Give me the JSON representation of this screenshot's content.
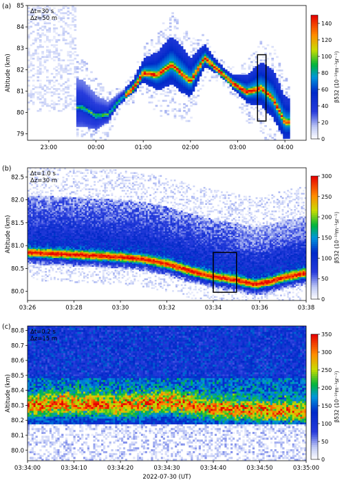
{
  "chart_data": [
    {
      "type": "heatmap",
      "panel_label": "(a)",
      "annotation": [
        "Δt=30 s",
        "Δz=50 m"
      ],
      "ylabel": "Altitude (km)",
      "ylim": [
        78.7,
        85
      ],
      "yticks": [
        79,
        80,
        81,
        82,
        83,
        84,
        85
      ],
      "xlim_hours_ut": [
        22.55,
        28.45
      ],
      "xticks": [
        {
          "t": 23,
          "label": "23:00"
        },
        {
          "t": 24,
          "label": "00:00"
        },
        {
          "t": 25,
          "label": "01:00"
        },
        {
          "t": 26,
          "label": "02:00"
        },
        {
          "t": 27,
          "label": "03:00"
        },
        {
          "t": 28,
          "label": "04:00"
        }
      ],
      "colorbar": {
        "label": "β532 (10⁻¹⁰m⁻¹sr⁻¹)",
        "min": 0,
        "max": 150,
        "ticks": [
          0,
          20,
          40,
          60,
          80,
          100,
          120,
          140
        ]
      },
      "layer_centre_km": {
        "t": [
          23.7,
          24.0,
          24.25,
          24.5,
          24.8,
          25.0,
          25.3,
          25.6,
          26.0,
          26.3,
          26.6,
          26.9,
          27.2,
          27.5,
          27.75,
          28.0
        ],
        "z": [
          80.3,
          79.9,
          79.95,
          80.6,
          81.2,
          81.9,
          81.8,
          82.3,
          81.5,
          82.6,
          82.0,
          81.4,
          81.0,
          81.2,
          80.7,
          79.6
        ]
      },
      "box": {
        "t": [
          27.42,
          27.6
        ],
        "z": [
          79.6,
          82.7
        ]
      }
    },
    {
      "type": "heatmap",
      "panel_label": "(b)",
      "annotation": [
        "Δt=1.0 s",
        "Δz=30 m"
      ],
      "ylabel": "Altitude (km)",
      "ylim": [
        79.8,
        82.7
      ],
      "yticks": [
        80.0,
        80.5,
        81.0,
        81.5,
        82.0,
        82.5
      ],
      "xlim_min_after_0300": [
        26,
        38
      ],
      "xticks": [
        {
          "m": 26,
          "label": "03:26"
        },
        {
          "m": 28,
          "label": "03:28"
        },
        {
          "m": 30,
          "label": "03:30"
        },
        {
          "m": 32,
          "label": "03:32"
        },
        {
          "m": 34,
          "label": "03:34"
        },
        {
          "m": 36,
          "label": "03:36"
        },
        {
          "m": 38,
          "label": "03:38"
        }
      ],
      "colorbar": {
        "label": "β532 (10⁻¹⁰m⁻¹sr⁻¹)",
        "min": 0,
        "max": 300,
        "ticks": [
          0,
          50,
          100,
          150,
          200,
          250,
          300
        ]
      },
      "layer_centre_km": {
        "m": [
          26,
          28,
          30,
          31,
          32,
          33,
          34,
          35,
          35.8,
          36.5,
          37,
          38
        ],
        "z": [
          80.85,
          80.8,
          80.75,
          80.7,
          80.6,
          80.45,
          80.32,
          80.25,
          80.15,
          80.22,
          80.3,
          80.4
        ]
      },
      "box": {
        "m": [
          34,
          35
        ],
        "z": [
          79.98,
          80.85
        ]
      }
    },
    {
      "type": "heatmap",
      "panel_label": "(c)",
      "annotation": [
        "Δt=0.2 s",
        "Δz=15 m"
      ],
      "ylabel": "Altitude (km)",
      "xlabel": "2022-07-30 (UT)",
      "ylim": [
        79.93,
        80.83
      ],
      "yticks": [
        80.0,
        80.1,
        80.2,
        80.3,
        80.4,
        80.5,
        80.6,
        80.7,
        80.8
      ],
      "xlim_s_after_033400": [
        0,
        60
      ],
      "xticks": [
        {
          "s": 0,
          "label": "03:34:00"
        },
        {
          "s": 10,
          "label": "03:34:10"
        },
        {
          "s": 20,
          "label": "03:34:20"
        },
        {
          "s": 30,
          "label": "03:34:30"
        },
        {
          "s": 40,
          "label": "03:34:40"
        },
        {
          "s": 50,
          "label": "03:34:50"
        },
        {
          "s": 60,
          "label": "03:35:00"
        }
      ],
      "colorbar": {
        "label": "β532 (10⁻¹⁰m⁻¹sr⁻¹)",
        "min": 0,
        "max": 350,
        "ticks": [
          0,
          50,
          100,
          150,
          200,
          250,
          300,
          350
        ]
      },
      "layer_centre_km": {
        "s": [
          0,
          10,
          20,
          30,
          40,
          50,
          60
        ],
        "z": [
          80.3,
          80.31,
          80.3,
          80.32,
          80.28,
          80.27,
          80.26
        ]
      }
    }
  ]
}
